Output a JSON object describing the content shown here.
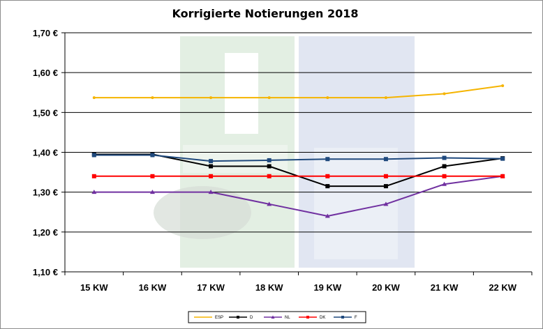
{
  "chart_data": {
    "type": "line",
    "title": "Korrigierte Notierungen 2018",
    "categories": [
      "15 KW",
      "16 KW",
      "17 KW",
      "18 KW",
      "19 KW",
      "20 KW",
      "21 KW",
      "22 KW"
    ],
    "ylim": [
      1.1,
      1.7
    ],
    "yticks": [
      "1,10 €",
      "1,20 €",
      "1,30 €",
      "1,40 €",
      "1,50 €",
      "1,60 €",
      "1,70 €"
    ],
    "grid": true,
    "legend": "bottom",
    "watermark": "ISN",
    "series": [
      {
        "name": "ESP",
        "color": "#f5b400",
        "marker": "none",
        "values": [
          1.537,
          1.537,
          1.537,
          1.537,
          1.537,
          1.537,
          1.547,
          1.567
        ]
      },
      {
        "name": "D",
        "color": "#000000",
        "marker": "square",
        "values": [
          1.395,
          1.395,
          1.365,
          1.365,
          1.315,
          1.315,
          1.365,
          1.385
        ]
      },
      {
        "name": "NL",
        "color": "#7030a0",
        "marker": "triangle",
        "values": [
          1.3,
          1.3,
          1.3,
          1.27,
          1.24,
          1.27,
          1.32,
          1.34
        ]
      },
      {
        "name": "DK",
        "color": "#ff0000",
        "marker": "square",
        "values": [
          1.34,
          1.34,
          1.34,
          1.34,
          1.34,
          1.34,
          1.34,
          1.34
        ]
      },
      {
        "name": "F",
        "color": "#1f497d",
        "marker": "square",
        "values": [
          1.393,
          1.393,
          1.378,
          1.38,
          1.383,
          1.383,
          1.386,
          1.384
        ]
      }
    ]
  }
}
